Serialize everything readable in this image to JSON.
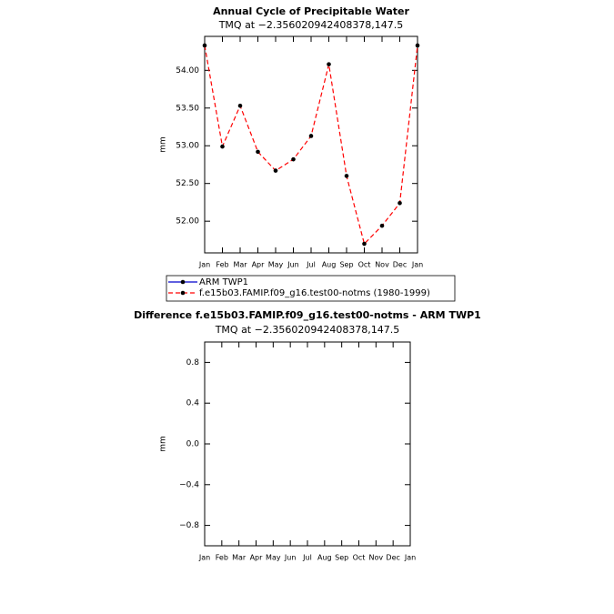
{
  "chart_data": [
    {
      "type": "line",
      "title": "Annual Cycle of Precipitable Water",
      "subtitle": "TMQ at −2.356020942408378,147.5",
      "y_label": "mm",
      "categories": [
        "Jan",
        "Feb",
        "Mar",
        "Apr",
        "May",
        "Jun",
        "Jul",
        "Aug",
        "Sep",
        "Oct",
        "Nov",
        "Dec",
        "Jan"
      ],
      "series": [
        {
          "name": "ARM TWP1",
          "color": "#0000cc",
          "line_style": "solid",
          "values": [
            null,
            null,
            null,
            null,
            null,
            null,
            null,
            null,
            null,
            null,
            null,
            null,
            null
          ]
        },
        {
          "name": "f.e15b03.FAMIP.f09_g16.test00-notms (1980-1999)",
          "color": "#ff0000",
          "line_style": "dashed",
          "values": [
            54.33,
            52.99,
            53.53,
            52.92,
            52.67,
            52.82,
            53.13,
            54.08,
            52.6,
            51.7,
            51.94,
            52.24,
            54.33
          ]
        }
      ],
      "ylim": [
        51.58,
        54.45
      ],
      "yticks": [
        {
          "value": 52.0,
          "label": "52.00"
        },
        {
          "value": 52.5,
          "label": "52.50"
        },
        {
          "value": 53.0,
          "label": "53.00"
        },
        {
          "value": 53.5,
          "label": "53.50"
        },
        {
          "value": 54.0,
          "label": "54.00"
        }
      ]
    },
    {
      "type": "line",
      "title": "Difference f.e15b03.FAMIP.f09_g16.test00-notms - ARM TWP1",
      "subtitle": "TMQ at −2.356020942408378,147.5",
      "y_label": "mm",
      "categories": [
        "Jan",
        "Feb",
        "Mar",
        "Apr",
        "May",
        "Jun",
        "Jul",
        "Aug",
        "Sep",
        "Oct",
        "Nov",
        "Dec",
        "Jan"
      ],
      "series": [],
      "ylim": [
        -1.0,
        1.0
      ],
      "yticks": [
        {
          "value": -0.8,
          "label": "−0.8"
        },
        {
          "value": -0.4,
          "label": "−0.4"
        },
        {
          "value": 0.0,
          "label": "0.0"
        },
        0.4,
        0.8
      ]
    }
  ]
}
